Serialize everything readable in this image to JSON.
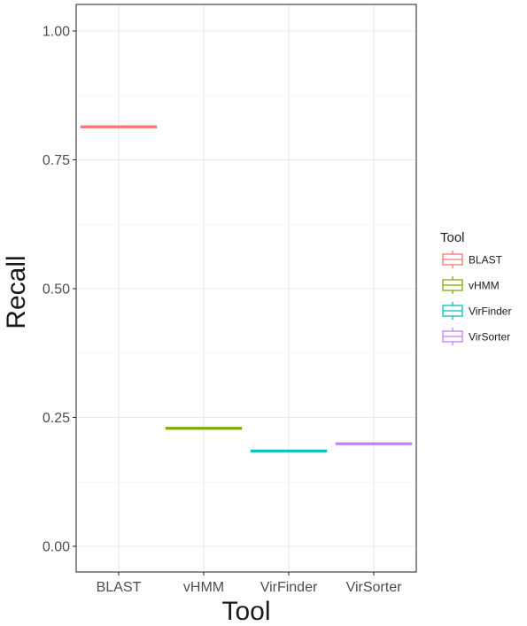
{
  "chart_data": {
    "type": "box",
    "title": "",
    "xlabel": "Tool",
    "ylabel": "Recall",
    "categories": [
      "BLAST",
      "vHMM",
      "VirFinder",
      "VirSorter"
    ],
    "values": [
      0.814,
      0.229,
      0.185,
      0.199
    ],
    "colors": [
      "#F8766D",
      "#7CAE00",
      "#00BFC4",
      "#C77CFF"
    ],
    "ylim": [
      -0.05,
      1.05
    ],
    "yticks": [
      0.0,
      0.25,
      0.5,
      0.75,
      1.0
    ],
    "ytick_labels": [
      "0.00",
      "0.25",
      "0.50",
      "0.75",
      "1.00"
    ],
    "grid": true,
    "legend": {
      "title": "Tool",
      "position": "right",
      "entries": [
        "BLAST",
        "vHMM",
        "VirFinder",
        "VirSorter"
      ]
    }
  }
}
